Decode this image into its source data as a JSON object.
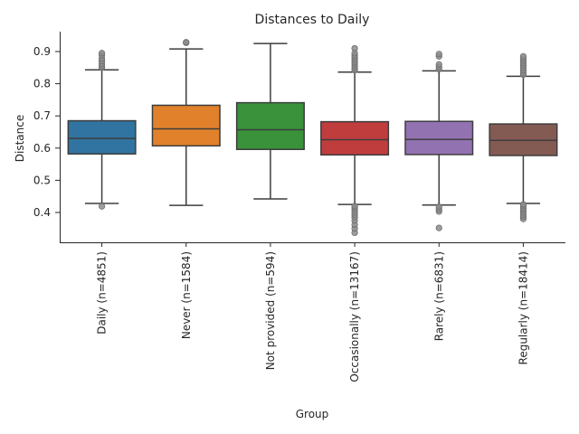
{
  "chart_data": {
    "type": "box",
    "title": "Distances to Daily",
    "xlabel": "Group",
    "ylabel": "Distance",
    "ylim": [
      0.31,
      0.96
    ],
    "yticks": [
      0.4,
      0.5,
      0.6,
      0.7,
      0.8,
      0.9
    ],
    "grid": false,
    "categories": [
      "Daily (n=4851)",
      "Never (n=1584)",
      "Not provided (n=594)",
      "Occasionally (n=13167)",
      "Rarely (n=6831)",
      "Regularly (n=18414)"
    ],
    "boxes": [
      {
        "min": 0.428,
        "q1": 0.582,
        "median": 0.63,
        "q3": 0.685,
        "max": 0.843,
        "color": "#3274a1",
        "outliers": [
          0.419,
          0.85,
          0.855,
          0.862,
          0.87,
          0.878,
          0.888,
          0.895
        ]
      },
      {
        "min": 0.422,
        "q1": 0.607,
        "median": 0.66,
        "q3": 0.733,
        "max": 0.908,
        "color": "#e1812c",
        "outliers": [
          0.927,
          0.929
        ]
      },
      {
        "min": 0.442,
        "q1": 0.596,
        "median": 0.657,
        "q3": 0.741,
        "max": 0.925,
        "color": "#3a923a",
        "outliers": []
      },
      {
        "min": 0.425,
        "q1": 0.579,
        "median": 0.626,
        "q3": 0.682,
        "max": 0.836,
        "color": "#c03d3e",
        "outliers": [
          0.337,
          0.35,
          0.362,
          0.375,
          0.385,
          0.393,
          0.4,
          0.408,
          0.415,
          0.42,
          0.842,
          0.848,
          0.855,
          0.862,
          0.868,
          0.875,
          0.882,
          0.888,
          0.895,
          0.91
        ]
      },
      {
        "min": 0.423,
        "q1": 0.58,
        "median": 0.627,
        "q3": 0.683,
        "max": 0.84,
        "color": "#9372b2",
        "outliers": [
          0.352,
          0.403,
          0.41,
          0.418,
          0.845,
          0.852,
          0.86,
          0.885,
          0.892
        ]
      },
      {
        "min": 0.428,
        "q1": 0.577,
        "median": 0.624,
        "q3": 0.675,
        "max": 0.823,
        "color": "#845b53",
        "outliers": [
          0.38,
          0.387,
          0.393,
          0.4,
          0.407,
          0.413,
          0.42,
          0.425,
          0.828,
          0.835,
          0.842,
          0.85,
          0.857,
          0.864,
          0.871,
          0.878,
          0.885
        ]
      }
    ]
  }
}
